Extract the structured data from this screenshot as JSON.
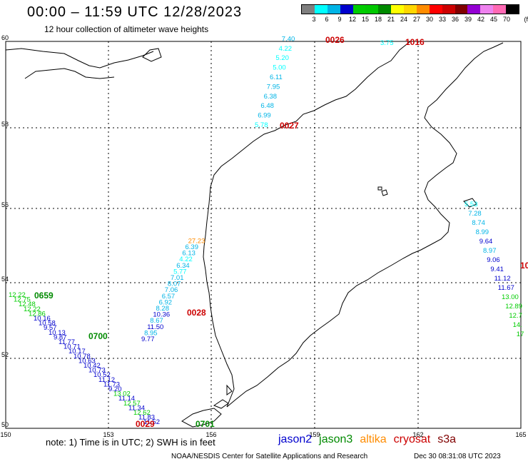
{
  "header": {
    "title": "00:00 – 11:59 UTC 12/28/2023",
    "subtitle": "12 hour collection of altimeter wave heights"
  },
  "scale": {
    "unit": "(ft)",
    "ticks": [
      "3",
      "6",
      "9",
      "12",
      "15",
      "18",
      "21",
      "24",
      "27",
      "30",
      "33",
      "36",
      "39",
      "42",
      "45",
      "70"
    ],
    "colors": [
      "#7f7f7f",
      "#00ffff",
      "#00b4e6",
      "#0000cd",
      "#00cd00",
      "#00c800",
      "#008a00",
      "#ffff00",
      "#ffd700",
      "#ff8c00",
      "#ff0000",
      "#cd0000",
      "#800000",
      "#9400d3",
      "#ee82ee",
      "#ff69b4",
      "#000000"
    ]
  },
  "axes": {
    "lon_ticks": [
      "150",
      "153",
      "156",
      "159",
      "162",
      "165"
    ],
    "lat_ticks": [
      "60",
      "58",
      "56",
      "54",
      "52",
      "50"
    ]
  },
  "tracks": [
    {
      "mission": "jason3",
      "start_label": "0659",
      "start_label_color": "#008a00",
      "end_label": "0700",
      "end_label_color": "#008a00",
      "values": [
        "12.22",
        "12.75",
        "12.48",
        "12.22",
        "12.86",
        "10.16",
        "10.58",
        "9.57",
        "10.13",
        "9.87",
        "11.77",
        "10.71",
        "10.17",
        "10.78",
        "10.63",
        "10.42",
        "10.73",
        "10.52",
        "11.12",
        "11.73",
        "9.20",
        "13.02",
        "11.14",
        "12.57",
        "11.34",
        "12.62",
        "11.83",
        "11.52"
      ]
    },
    {
      "mission": "cryosat-track-1",
      "start_label": "0029",
      "start_label_color": "#cc0000",
      "end_label": "0028",
      "end_label_color": "#cc0000",
      "values": [
        "9.77",
        "8.95",
        "11.50",
        "8.67",
        "10.36",
        "8.28",
        "6.92",
        "6.57",
        "7.06",
        "8.07",
        "7.01",
        "5.77",
        "6.34",
        "4.22",
        "6.13",
        "6.39",
        "27.23"
      ]
    },
    {
      "mission": "cryosat-track-2",
      "start_label": "0027",
      "start_label_color": "#cc0000",
      "end_label": "0026",
      "end_label_color": "#cc0000",
      "values": [
        "5.78",
        "6.99",
        "6.48",
        "6.38",
        "7.95",
        "6.11",
        "5.00",
        "5.20",
        "4.22",
        "7.40"
      ]
    },
    {
      "mission": "cryosat-track-3",
      "start_label": "1016",
      "start_label_color": "#cc0000",
      "values": [
        "3.75"
      ]
    },
    {
      "mission": "east-track",
      "start_label": "10",
      "start_label_color": "#cc0000",
      "values": [
        "5.53",
        "7.28",
        "8.74",
        "8.99",
        "9.64",
        "8.97",
        "9.06",
        "9.41",
        "11.12",
        "11.67",
        "13.00",
        "12.89",
        "12.7",
        "14.",
        "17"
      ]
    },
    {
      "mission": "bottom-label",
      "start_label": "0701",
      "start_label_color": "#008a00",
      "values": []
    }
  ],
  "footer": {
    "note": "note:  1) Time is in UTC;  2) SWH is in feet",
    "legend": [
      {
        "name": "jason2",
        "color": "#0000cd"
      },
      {
        "name": "jason3",
        "color": "#008a00"
      },
      {
        "name": "altika",
        "color": "#ff8c00"
      },
      {
        "name": "cryosat",
        "color": "#cc0000"
      },
      {
        "name": "s3a",
        "color": "#800000"
      }
    ],
    "credit": "NOAA/NESDIS Center for Satellite Applications and Research",
    "timestamp": "Dec 30 08:31:08 UTC 2023"
  }
}
